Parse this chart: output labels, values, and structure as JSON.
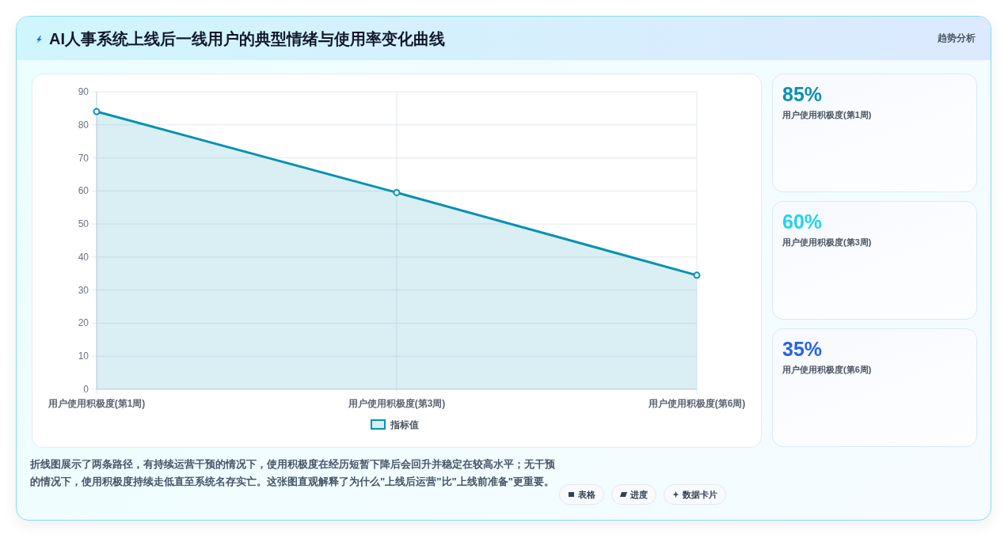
{
  "chart_data": [
    {
      "type": "area",
      "title": "AI人事系统上线后一线用户的典型情绪与使用率变化曲线",
      "categories": [
        "用户使用积极度(第1周)",
        "用户使用积极度(第3周)",
        "用户使用积极度(第6周)"
      ],
      "series": [
        {
          "name": "指标值",
          "color": "#0891b2",
          "values": [
            84,
            59.5,
            34.5
          ]
        }
      ],
      "ylim": [
        0,
        90
      ],
      "yticks": [
        0,
        10,
        20,
        30,
        40,
        50,
        60,
        70,
        80,
        90
      ],
      "grid": true,
      "legend": "bottom",
      "marker": "circle",
      "annotations": [
        "折线图展示了两条路径，有持续运营干预的情况下，使用积极度在经历短暂下降后会回升并稳定在较高水平；无干预的情况下，使用积极度持续走低直至系统名存实亡。这张图直观解释了为什么\"上线后运营\"比\"上线前准备\"更重要。"
      ]
    },
    {
      "type": "other",
      "title": "趋势分析",
      "annotations": [
        "85%",
        "用户使用积极度(第1周)",
        "60%",
        "用户使用积极度(第3周)",
        "35%",
        "用户使用积极度(第6周)"
      ],
      "colors": [
        "#0891b2",
        "#22d3ee",
        "#2563eb"
      ]
    },
    {
      "type": "other",
      "annotations": [
        "表格",
        "进度",
        "数据卡片"
      ]
    }
  ]
}
